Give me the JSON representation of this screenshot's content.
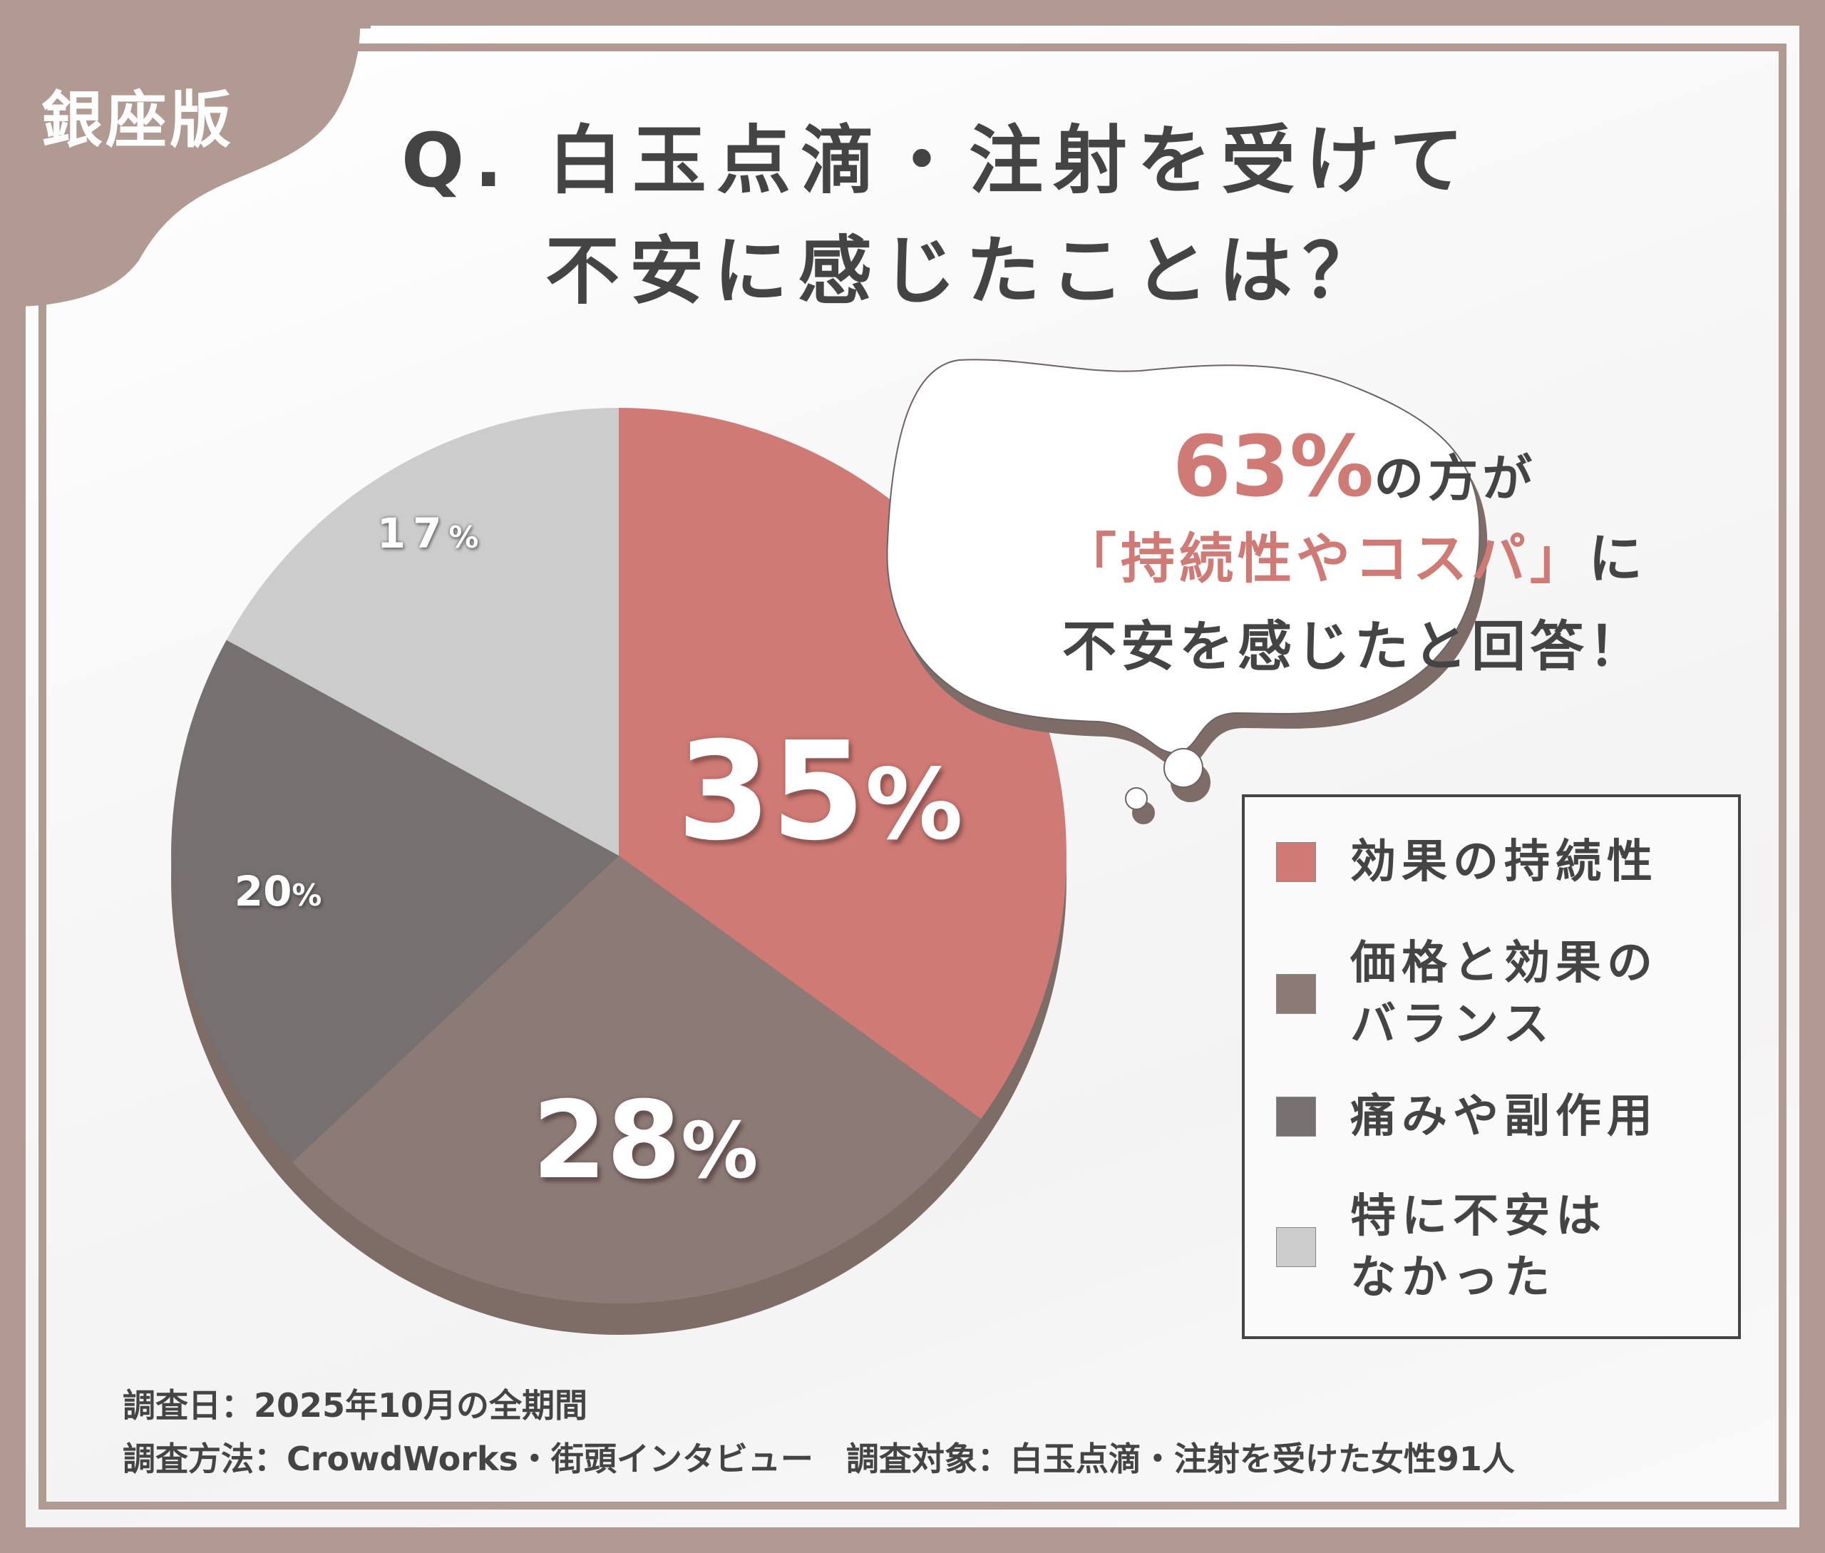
{
  "badge": "銀座版",
  "title": {
    "line1": "Q. 白玉点滴・注射を受けて",
    "line2": "不安に感じたことは？"
  },
  "colors": {
    "frame": "#b19a92",
    "text": "#444444",
    "accent": "#cf7a74",
    "pie_base": "#7e6c67"
  },
  "chart_data": {
    "type": "pie",
    "title": "Q. 白玉点滴・注射を受けて不安に感じたことは？",
    "start_angle": 0,
    "direction": "clockwise",
    "categories": [
      "効果の持続性",
      "価格と効果のバランス",
      "痛みや副作用",
      "特に不安はなかった"
    ],
    "values": [
      35,
      28,
      20,
      17
    ],
    "unit": "%",
    "colors": [
      "#cf7a74",
      "#8c7a77",
      "#767170",
      "#cccccc"
    ],
    "labels": [
      {
        "num": "35",
        "pct": "%"
      },
      {
        "num": "28",
        "pct": "%"
      },
      {
        "num": "20",
        "pct": "%"
      },
      {
        "num": "17",
        "pct": "%"
      }
    ],
    "legend_position": "right",
    "sample_size": 91
  },
  "bubble": {
    "highlight_pct": "63%",
    "line1_rest": "の方が",
    "line2_highlight": "「持続性やコスパ」",
    "line2_rest": "に",
    "line3": "不安を感じたと回答！"
  },
  "legend": {
    "items": [
      {
        "label": "効果の持続性",
        "color": "#cf7a74"
      },
      {
        "label": "価格と効果の\nバランス",
        "color": "#8c7a77"
      },
      {
        "label": "痛みや副作用",
        "color": "#767170"
      },
      {
        "label": "特に不安は\nなかった",
        "color": "#cccccc"
      }
    ]
  },
  "footer": {
    "line1": "調査日：2025年10月の全期間",
    "line2": "調査方法：CrowdWorks・街頭インタビュー　調査対象：白玉点滴・注射を受けた女性91人"
  }
}
